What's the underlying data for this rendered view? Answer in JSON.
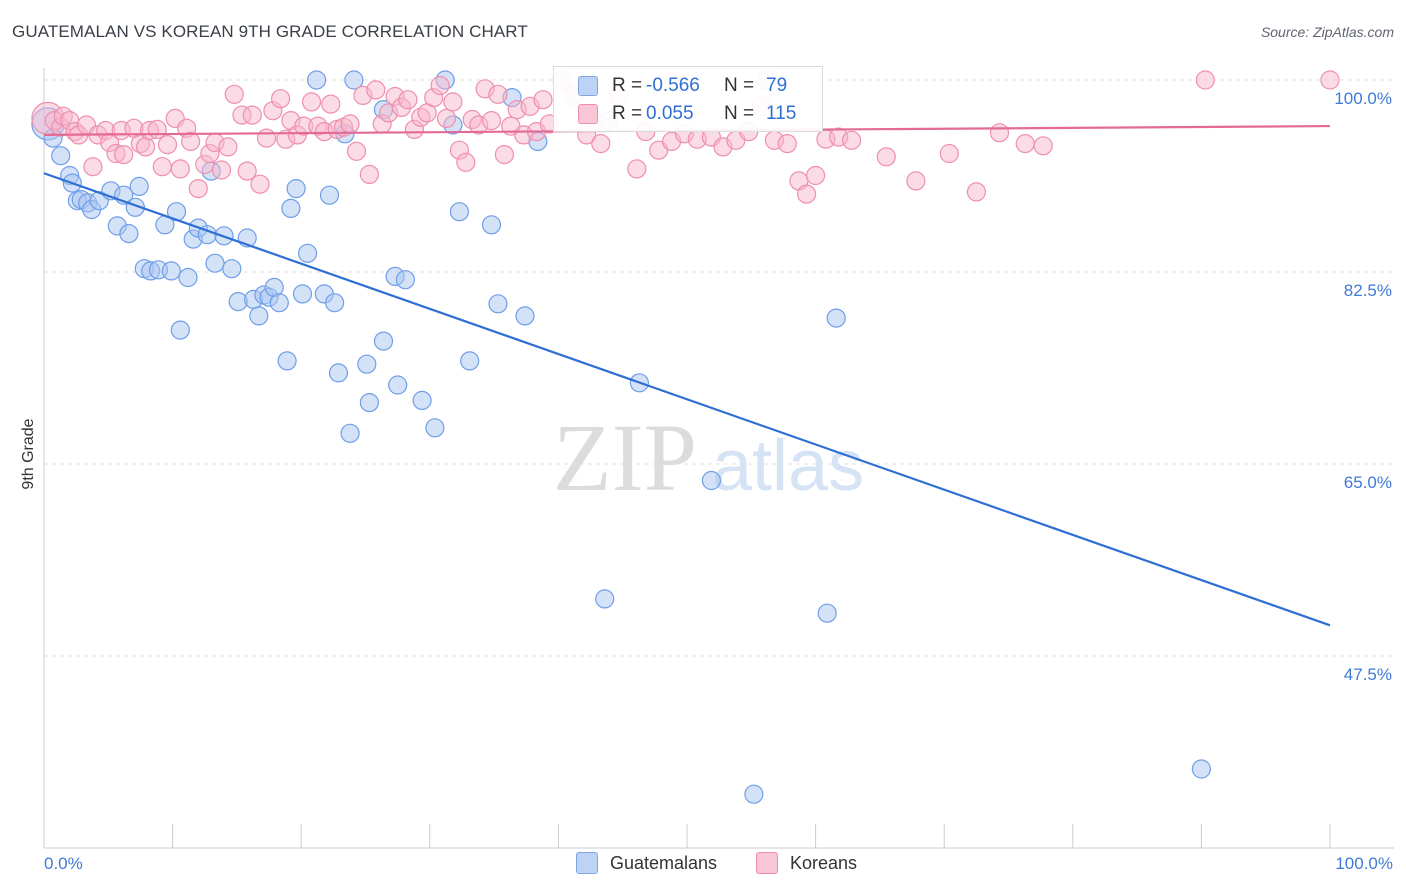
{
  "title": "GUATEMALAN VS KOREAN 9TH GRADE CORRELATION CHART",
  "source": "Source: ZipAtlas.com",
  "watermark": {
    "zip": "ZIP",
    "atlas": "atlas"
  },
  "legend": {
    "rows": [
      {
        "r_label": "R =",
        "r_value": "-0.566",
        "n_label": "N =",
        "n_value": "79",
        "color": "#a9c6f2"
      },
      {
        "r_label": "R =",
        "r_value": "0.055",
        "n_label": "N =",
        "n_value": "115",
        "color": "#f7b8cc"
      }
    ]
  },
  "bottom_legend": {
    "guatemalans": "Guatemalans",
    "koreans": "Koreans"
  },
  "chart_data": {
    "type": "scatter",
    "title": "GUATEMALAN VS KOREAN 9TH GRADE CORRELATION CHART",
    "xlabel": "",
    "ylabel": "9th Grade",
    "xlim": [
      0,
      100
    ],
    "ylim": [
      35,
      101
    ],
    "x_tick_labels": [
      "0.0%",
      "100.0%"
    ],
    "y_ticks": [
      47.5,
      65.0,
      82.5,
      100.0
    ],
    "y_tick_labels": [
      "47.5%",
      "65.0%",
      "82.5%",
      "100.0%"
    ],
    "grid": true,
    "series": [
      {
        "name": "Guatemalans",
        "color": "#6f9ee8",
        "fill": "#a9c6f2",
        "trend": {
          "x": [
            0,
            100
          ],
          "y": [
            91.5,
            50.3
          ],
          "color": "#2f6fd4"
        },
        "points": [
          [
            0.3,
            96.0
          ],
          [
            0.7,
            94.7
          ],
          [
            1.3,
            93.1
          ],
          [
            2.0,
            91.3
          ],
          [
            2.2,
            90.6
          ],
          [
            2.6,
            89.0
          ],
          [
            2.9,
            89.1
          ],
          [
            3.4,
            88.8
          ],
          [
            3.7,
            88.2
          ],
          [
            4.3,
            89.0
          ],
          [
            5.2,
            89.9
          ],
          [
            5.7,
            86.7
          ],
          [
            6.2,
            89.5
          ],
          [
            6.6,
            86.0
          ],
          [
            7.1,
            88.4
          ],
          [
            7.4,
            90.3
          ],
          [
            7.8,
            82.8
          ],
          [
            8.3,
            82.6
          ],
          [
            8.9,
            82.7
          ],
          [
            9.4,
            86.8
          ],
          [
            9.9,
            82.6
          ],
          [
            10.3,
            88.0
          ],
          [
            10.6,
            77.2
          ],
          [
            11.2,
            82.0
          ],
          [
            11.6,
            85.5
          ],
          [
            12.0,
            86.5
          ],
          [
            12.7,
            85.9
          ],
          [
            13.0,
            91.7
          ],
          [
            13.3,
            83.3
          ],
          [
            14.0,
            85.8
          ],
          [
            14.6,
            82.8
          ],
          [
            15.1,
            79.8
          ],
          [
            15.8,
            85.6
          ],
          [
            16.3,
            80.0
          ],
          [
            16.7,
            78.5
          ],
          [
            17.1,
            80.4
          ],
          [
            17.5,
            80.2
          ],
          [
            17.9,
            81.1
          ],
          [
            18.3,
            79.7
          ],
          [
            18.9,
            74.4
          ],
          [
            19.2,
            88.3
          ],
          [
            19.6,
            90.1
          ],
          [
            20.1,
            80.5
          ],
          [
            20.5,
            84.2
          ],
          [
            21.2,
            100.0
          ],
          [
            21.8,
            80.5
          ],
          [
            22.2,
            89.5
          ],
          [
            22.6,
            79.7
          ],
          [
            22.9,
            73.3
          ],
          [
            23.4,
            95.1
          ],
          [
            23.8,
            67.8
          ],
          [
            24.1,
            100.0
          ],
          [
            25.1,
            74.1
          ],
          [
            25.3,
            70.6
          ],
          [
            26.4,
            97.3
          ],
          [
            26.4,
            76.2
          ],
          [
            27.3,
            82.1
          ],
          [
            27.5,
            72.2
          ],
          [
            28.1,
            81.8
          ],
          [
            29.4,
            70.8
          ],
          [
            30.4,
            68.3
          ],
          [
            31.2,
            100.0
          ],
          [
            31.8,
            95.9
          ],
          [
            32.3,
            88.0
          ],
          [
            33.1,
            74.4
          ],
          [
            34.8,
            86.8
          ],
          [
            35.3,
            79.6
          ],
          [
            36.4,
            98.4
          ],
          [
            37.4,
            78.5
          ],
          [
            38.4,
            94.4
          ],
          [
            43.6,
            52.7
          ],
          [
            43.9,
            96.3
          ],
          [
            46.3,
            72.4
          ],
          [
            51.9,
            63.5
          ],
          [
            55.2,
            34.9
          ],
          [
            56.2,
            100.0
          ],
          [
            60.9,
            51.4
          ],
          [
            61.6,
            78.3
          ],
          [
            90.0,
            37.2
          ]
        ]
      },
      {
        "name": "Koreans",
        "color": "#ee8fae",
        "fill": "#f7b8cc",
        "trend": {
          "x": [
            0,
            100
          ],
          "y": [
            95.0,
            95.8
          ],
          "color": "#e36a97"
        },
        "points": [
          [
            0.3,
            96.5
          ],
          [
            0.8,
            96.3
          ],
          [
            1.3,
            95.7
          ],
          [
            1.5,
            96.7
          ],
          [
            2.0,
            96.3
          ],
          [
            2.4,
            95.3
          ],
          [
            2.7,
            95.0
          ],
          [
            3.3,
            95.9
          ],
          [
            3.8,
            92.1
          ],
          [
            4.2,
            95.0
          ],
          [
            4.8,
            95.4
          ],
          [
            5.1,
            94.3
          ],
          [
            5.6,
            93.3
          ],
          [
            6.0,
            95.4
          ],
          [
            6.2,
            93.2
          ],
          [
            7.0,
            95.6
          ],
          [
            7.5,
            94.2
          ],
          [
            7.9,
            93.9
          ],
          [
            8.2,
            95.4
          ],
          [
            8.8,
            95.5
          ],
          [
            9.2,
            92.1
          ],
          [
            9.6,
            94.1
          ],
          [
            10.2,
            96.5
          ],
          [
            10.6,
            91.9
          ],
          [
            11.1,
            95.6
          ],
          [
            11.4,
            94.4
          ],
          [
            12.0,
            90.1
          ],
          [
            12.5,
            92.3
          ],
          [
            12.9,
            93.3
          ],
          [
            13.3,
            94.3
          ],
          [
            13.8,
            91.8
          ],
          [
            14.3,
            93.9
          ],
          [
            14.8,
            98.7
          ],
          [
            15.4,
            96.8
          ],
          [
            15.8,
            91.7
          ],
          [
            16.2,
            96.8
          ],
          [
            16.8,
            90.5
          ],
          [
            17.3,
            94.7
          ],
          [
            17.8,
            97.2
          ],
          [
            18.4,
            98.3
          ],
          [
            18.8,
            94.6
          ],
          [
            19.2,
            96.3
          ],
          [
            19.7,
            95.0
          ],
          [
            20.2,
            95.8
          ],
          [
            20.8,
            98.0
          ],
          [
            21.3,
            95.8
          ],
          [
            21.8,
            95.3
          ],
          [
            22.3,
            97.8
          ],
          [
            22.8,
            95.5
          ],
          [
            23.3,
            95.7
          ],
          [
            23.8,
            96.0
          ],
          [
            24.3,
            93.5
          ],
          [
            24.8,
            98.6
          ],
          [
            25.3,
            91.4
          ],
          [
            25.8,
            99.1
          ],
          [
            26.3,
            96.0
          ],
          [
            26.8,
            97.0
          ],
          [
            27.3,
            98.5
          ],
          [
            27.8,
            97.5
          ],
          [
            28.3,
            98.2
          ],
          [
            28.8,
            95.5
          ],
          [
            29.3,
            96.6
          ],
          [
            29.8,
            97.0
          ],
          [
            30.3,
            98.4
          ],
          [
            30.8,
            99.5
          ],
          [
            31.3,
            96.5
          ],
          [
            31.8,
            98.0
          ],
          [
            32.3,
            93.6
          ],
          [
            32.8,
            92.5
          ],
          [
            33.3,
            96.4
          ],
          [
            33.8,
            95.9
          ],
          [
            34.3,
            99.2
          ],
          [
            34.8,
            96.3
          ],
          [
            35.3,
            98.7
          ],
          [
            35.8,
            93.2
          ],
          [
            36.3,
            95.8
          ],
          [
            36.8,
            97.3
          ],
          [
            37.3,
            95.0
          ],
          [
            37.8,
            97.6
          ],
          [
            38.3,
            95.3
          ],
          [
            38.8,
            98.2
          ],
          [
            39.3,
            96.0
          ],
          [
            40.3,
            100.0
          ],
          [
            41.2,
            98.6
          ],
          [
            42.2,
            95.0
          ],
          [
            43.3,
            94.2
          ],
          [
            44.7,
            98.5
          ],
          [
            46.1,
            91.9
          ],
          [
            46.8,
            95.3
          ],
          [
            47.8,
            93.6
          ],
          [
            48.8,
            94.4
          ],
          [
            49.8,
            95.1
          ],
          [
            50.8,
            94.6
          ],
          [
            51.9,
            94.8
          ],
          [
            52.8,
            93.9
          ],
          [
            53.8,
            94.5
          ],
          [
            54.8,
            95.3
          ],
          [
            55.8,
            97.6
          ],
          [
            56.8,
            94.5
          ],
          [
            57.8,
            94.2
          ],
          [
            58.7,
            90.8
          ],
          [
            59.3,
            89.6
          ],
          [
            60.0,
            91.3
          ],
          [
            60.8,
            94.6
          ],
          [
            61.8,
            94.8
          ],
          [
            62.8,
            94.5
          ],
          [
            65.5,
            93.0
          ],
          [
            67.8,
            90.8
          ],
          [
            70.4,
            93.3
          ],
          [
            72.5,
            89.8
          ],
          [
            74.3,
            95.2
          ],
          [
            76.3,
            94.2
          ],
          [
            77.7,
            94.0
          ],
          [
            90.3,
            100.0
          ],
          [
            100.0,
            100.0
          ]
        ]
      }
    ]
  }
}
